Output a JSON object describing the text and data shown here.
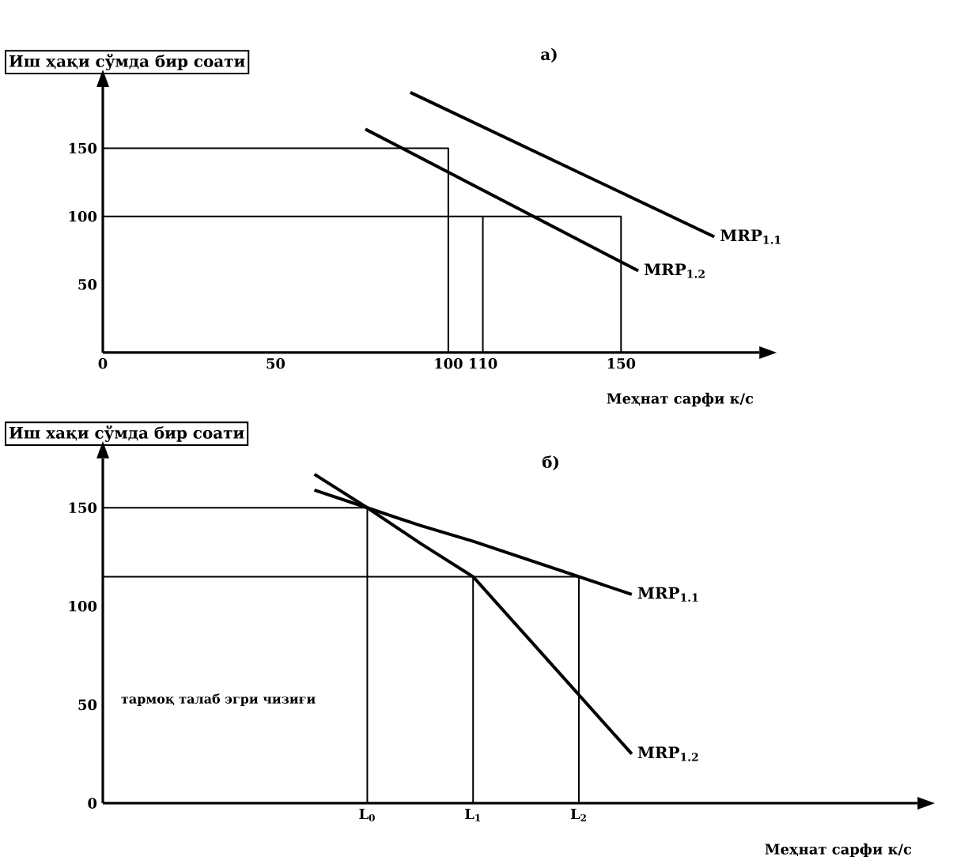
{
  "chart_data": [
    {
      "type": "line",
      "title": "а)",
      "ylabel": "Иш ҳақи сўмда бир соати",
      "xlabel": "Меҳнат сарфи к/с",
      "marker": "none",
      "xlim": [
        0,
        190
      ],
      "xticks": [
        0,
        50,
        100,
        110,
        150
      ],
      "ylim": [
        0,
        195
      ],
      "yticks": [
        50,
        100,
        150
      ],
      "series": [
        {
          "color": "#000000",
          "x": [
            0,
            100,
            100
          ],
          "values": [
            150,
            150,
            0
          ]
        },
        {
          "color": "#000000",
          "x": [
            0,
            150,
            150
          ],
          "values": [
            100,
            100,
            0
          ]
        },
        {
          "color": "#000000",
          "x": [
            110,
            110
          ],
          "values": [
            100,
            0
          ]
        },
        {
          "name": "MRP$_{1.1}$",
          "color": "#000000",
          "x": [
            89,
            177
          ],
          "values": [
            191,
            85
          ]
        },
        {
          "name": "MRP$_{1.2}$",
          "color": "#000000",
          "x": [
            76,
            155
          ],
          "values": [
            164,
            60
          ]
        }
      ]
    },
    {
      "type": "line",
      "title": "б)",
      "ylabel": "Иш хақи сўмда бир соати",
      "xlabel": "Меҳнат сарфи к/с",
      "marker": "none",
      "annotations": [
        "тармоқ талаб эгри чизиғи"
      ],
      "categories": [
        null,
        null,
        null,
        null,
        null,
        "L$_{0}$",
        null,
        "L$_{1}$",
        null,
        "L$_{2}$",
        null,
        null,
        null,
        null,
        null,
        null
      ],
      "ylim": [
        0,
        175
      ],
      "yticks": [
        0,
        50,
        100,
        150
      ],
      "series": [
        {
          "color": "#000000",
          "values": [
            150,
            150,
            150,
            150,
            150,
            150,
            null,
            null,
            null,
            null,
            null,
            null,
            null,
            null,
            null,
            null
          ]
        },
        {
          "color": "#000000",
          "x": [
            "L$_{0}$",
            "L$_{0}$"
          ],
          "values": [
            150,
            0
          ]
        },
        {
          "color": "#000000",
          "values": [
            115,
            115,
            115,
            115,
            115,
            115,
            115,
            115,
            115,
            115,
            null,
            null,
            null,
            null,
            null,
            null
          ]
        },
        {
          "color": "#000000",
          "x": [
            "L$_{1}$",
            "L$_{1}$"
          ],
          "values": [
            115,
            0
          ]
        },
        {
          "color": "#000000",
          "x": [
            "L$_{2}$",
            "L$_{2}$"
          ],
          "values": [
            115,
            0
          ]
        },
        {
          "name": "MRP$_{1.1}$",
          "color": "#000000",
          "values": [
            null,
            null,
            null,
            null,
            159,
            150,
            141,
            133,
            124,
            115,
            106,
            null,
            null,
            null,
            null,
            null
          ]
        },
        {
          "name": "MRP$_{1.2}$",
          "color": "#000000",
          "values": [
            null,
            null,
            null,
            null,
            167,
            150,
            132,
            115,
            85,
            55,
            25,
            null,
            null,
            null,
            null,
            null
          ]
        }
      ]
    }
  ]
}
